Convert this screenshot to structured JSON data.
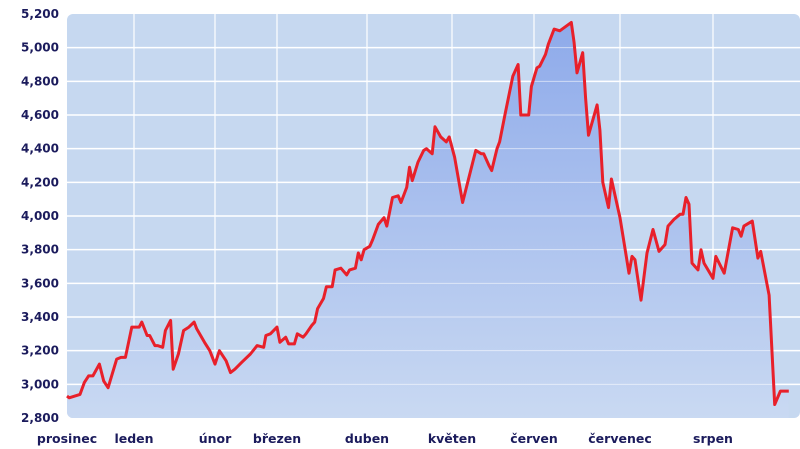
{
  "chart_data": {
    "type": "area",
    "title": "",
    "xlabel": "",
    "ylabel": "",
    "ylim": [
      2800,
      5200
    ],
    "yticks": [
      2800,
      3000,
      3200,
      3400,
      3600,
      3800,
      4000,
      4200,
      4400,
      4600,
      4800,
      5000,
      5200
    ],
    "ytick_labels": [
      "2,800",
      "3,000",
      "3,200",
      "3,400",
      "3,600",
      "3,800",
      "4,000",
      "4,200",
      "4,400",
      "4,600",
      "4,800",
      "5,000",
      "5,200"
    ],
    "xtick_labels": [
      "prosinec",
      "leden",
      "únor",
      "březen",
      "duben",
      "květen",
      "červen",
      "červenec",
      "srpen"
    ],
    "grid": true,
    "colors": {
      "line": "#e8202a",
      "fill_top": "#8eaaea",
      "fill_bottom": "#c9d9f2",
      "background": "#c6d8f0",
      "grid": "#ffffff",
      "text": "#1b1b5c"
    },
    "x": [
      "12-01",
      "12-02",
      "12-07",
      "12-09",
      "12-11",
      "12-13",
      "12-16",
      "12-18",
      "12-20",
      "12-24",
      "12-26",
      "12-28",
      "12-31",
      "01-03",
      "01-04",
      "01-06",
      "01-07",
      "01-09",
      "01-10",
      "01-12",
      "01-13",
      "01-15",
      "01-16",
      "01-18",
      "01-20",
      "01-22",
      "01-24",
      "01-25",
      "01-28",
      "01-30",
      "02-01",
      "02-03",
      "02-06",
      "02-08",
      "02-10",
      "02-13",
      "02-17",
      "02-20",
      "02-23",
      "02-24",
      "02-26",
      "03-01",
      "03-02",
      "03-04",
      "03-05",
      "03-07",
      "03-08",
      "03-10",
      "03-11",
      "03-13",
      "03-14",
      "03-15",
      "03-17",
      "03-18",
      "03-20",
      "03-21",
      "03-23",
      "03-25",
      "03-26",
      "03-28",
      "03-29",
      "03-30",
      "03-31",
      "04-02",
      "04-03",
      "04-05",
      "04-07",
      "04-08",
      "04-10",
      "04-12",
      "04-13",
      "04-15",
      "04-16",
      "04-17",
      "04-19",
      "04-21",
      "04-22",
      "04-24",
      "04-25",
      "04-27",
      "04-29",
      "04-30",
      "05-02",
      "05-05",
      "05-09",
      "05-10",
      "05-12",
      "05-13",
      "05-15",
      "05-16",
      "05-18",
      "05-19",
      "05-21",
      "05-24",
      "05-26",
      "05-27",
      "05-30",
      "05-31",
      "06-02",
      "06-03",
      "06-05",
      "06-06",
      "06-08",
      "06-10",
      "06-14",
      "06-15",
      "06-16",
      "06-18",
      "06-19",
      "06-20",
      "06-23",
      "06-24",
      "06-25",
      "06-27",
      "06-28",
      "07-01",
      "07-04",
      "07-05",
      "07-06",
      "07-08",
      "07-10",
      "07-12",
      "07-14",
      "07-16",
      "07-17",
      "07-19",
      "07-21",
      "07-22",
      "07-23",
      "07-24",
      "07-25",
      "07-27",
      "07-28",
      "07-29",
      "08-01",
      "08-02",
      "08-05",
      "08-08",
      "08-10",
      "08-11",
      "08-12",
      "08-15",
      "08-17",
      "08-18",
      "08-21",
      "08-23",
      "08-25",
      "08-28"
    ],
    "values": [
      2930,
      2920,
      2940,
      3010,
      3050,
      3050,
      3120,
      3020,
      2980,
      3150,
      3160,
      3160,
      3340,
      3340,
      3370,
      3290,
      3290,
      3230,
      3230,
      3220,
      3320,
      3380,
      3090,
      3180,
      3320,
      3340,
      3370,
      3330,
      3250,
      3200,
      3120,
      3200,
      3140,
      3070,
      3090,
      3130,
      3180,
      3230,
      3220,
      3290,
      3300,
      3340,
      3250,
      3280,
      3240,
      3240,
      3300,
      3280,
      3300,
      3350,
      3370,
      3450,
      3510,
      3580,
      3580,
      3680,
      3690,
      3650,
      3680,
      3690,
      3780,
      3740,
      3800,
      3820,
      3860,
      3950,
      3990,
      3940,
      4110,
      4120,
      4080,
      4170,
      4290,
      4210,
      4320,
      4390,
      4400,
      4370,
      4530,
      4470,
      4440,
      4470,
      4350,
      4080,
      4330,
      4390,
      4370,
      4370,
      4300,
      4270,
      4400,
      4440,
      4600,
      4830,
      4900,
      4600,
      4600,
      4770,
      4880,
      4890,
      4960,
      5020,
      5110,
      5100,
      5150,
      5030,
      4850,
      4970,
      4700,
      4480,
      4660,
      4510,
      4200,
      4050,
      4220,
      3990,
      3660,
      3760,
      3740,
      3500,
      3780,
      3920,
      3790,
      3830,
      3940,
      3980,
      4010,
      4010,
      4110,
      4070,
      3720,
      3680,
      3800,
      3720,
      3630,
      3760,
      3660,
      3930,
      3920,
      3880,
      3940,
      3970,
      3750,
      3790,
      3530,
      2880,
      2960,
      2960
    ]
  }
}
